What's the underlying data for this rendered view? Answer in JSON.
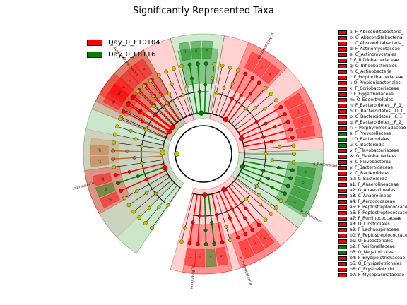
{
  "chart_data": {
    "type": "cladogram",
    "title": "Significantly Represented Taxa",
    "groups": [
      {
        "name": "Day_0_F10104",
        "color": "#ff0000"
      },
      {
        "name": "Day_0_F8116",
        "color": "#008000"
      }
    ],
    "taxa": [
      {
        "code": "a",
        "label": "a: F_Absconditabacteria_",
        "group": 0
      },
      {
        "code": "b",
        "label": "b: O_Absconditabacteria_",
        "group": 0
      },
      {
        "code": "c",
        "label": "c: C_Absconditabacteria_",
        "group": 0
      },
      {
        "code": "d",
        "label": "d: F_Actinomycetaceae",
        "group": 0
      },
      {
        "code": "e",
        "label": "e: O_Actinomycetales",
        "group": 0
      },
      {
        "code": "f",
        "label": "f: F_Bifidobacteriaceae",
        "group": 0
      },
      {
        "code": "g",
        "label": "g: O_Bifidobacteriales",
        "group": 0
      },
      {
        "code": "h",
        "label": "h: C_Actinobacteria",
        "group": 0
      },
      {
        "code": "i",
        "label": "i: F_Propionibacteriaceae",
        "group": 0
      },
      {
        "code": "j",
        "label": "j: O_Propionibacteriales",
        "group": 0
      },
      {
        "code": "k",
        "label": "k: F_Coriobacteriaceae",
        "group": 0
      },
      {
        "code": "l",
        "label": "l: F_Eggerthellaceae",
        "group": 0
      },
      {
        "code": "m",
        "label": "m: O_Eggerthellales",
        "group": 0
      },
      {
        "code": "n",
        "label": "n: F_Bacteroidetes__F_1_",
        "group": 0
      },
      {
        "code": "o",
        "label": "o: O_Bacteroidetes__O_1_",
        "group": 0
      },
      {
        "code": "p",
        "label": "p: C_Bacteroidetes__C_1_",
        "group": 0
      },
      {
        "code": "q",
        "label": "q: F_Bacteroidetes__F_2_",
        "group": 0
      },
      {
        "code": "r",
        "label": "r: F_Porphyromonadaceae",
        "group": 0
      },
      {
        "code": "s",
        "label": "s: F_Prevotellaceae",
        "group": 1
      },
      {
        "code": "t",
        "label": "t: O_Bacteroidales",
        "group": 1
      },
      {
        "code": "u",
        "label": "u: C_Bacteroidia",
        "group": 1
      },
      {
        "code": "v",
        "label": "v: F_Flavobacteriaceae",
        "group": 0
      },
      {
        "code": "w",
        "label": "w: O_Flavobacteriales",
        "group": 0
      },
      {
        "code": "x",
        "label": "x: C_Flavobacteriia",
        "group": 0
      },
      {
        "code": "y",
        "label": "y: F_Bacteroidaceae",
        "group": 0
      },
      {
        "code": "z",
        "label": "z: O_Bacteroidales",
        "group": 0
      },
      {
        "code": "a0",
        "label": "a0: C_Bacteroidia",
        "group": 0
      },
      {
        "code": "a1",
        "label": "a1: F_Anaerolineaceae",
        "group": 0
      },
      {
        "code": "a2",
        "label": "a2: O_Anaerolineales",
        "group": 0
      },
      {
        "code": "a3",
        "label": "a3: C_Anaerolineae",
        "group": 0
      },
      {
        "code": "a4",
        "label": "a4: F_Aerococcaceae",
        "group": 0
      },
      {
        "code": "a5",
        "label": "a5: F_Peptostreptococcaceae",
        "group": 0
      },
      {
        "code": "a6",
        "label": "a6: F_Peptostreptococcaceae",
        "group": 0
      },
      {
        "code": "a7",
        "label": "a7: F_Ruminococcaceae",
        "group": 0
      },
      {
        "code": "a8",
        "label": "a8: O_Clostridiales",
        "group": 0
      },
      {
        "code": "a9",
        "label": "a9: F_Lachnospiraceae",
        "group": 0
      },
      {
        "code": "b0",
        "label": "b0: F_Peptostreptococcaceae",
        "group": 0
      },
      {
        "code": "b1",
        "label": "b1: O_Eubacteriales",
        "group": 0
      },
      {
        "code": "b2",
        "label": "b2: F_Veillonellaceae",
        "group": 1
      },
      {
        "code": "b3",
        "label": "b3: O_Negativicutes",
        "group": 1
      },
      {
        "code": "b4",
        "label": "b4: F_Erysipelotrichaceae",
        "group": 0
      },
      {
        "code": "b5",
        "label": "b5: O_Erysipelotrichales",
        "group": 0
      },
      {
        "code": "b6",
        "label": "b6: C_Erysipelotrichi",
        "group": 0
      },
      {
        "code": "b7",
        "label": "b7: F_Mycoplasmataceae",
        "group": 0
      }
    ],
    "phylum_labels": [
      "p_Absconditabacteria",
      "p_Actinobacteria",
      "p_Bacteroidetes",
      "p_Chloroflexi",
      "p_Firmicutes",
      "p_Proteobacteria",
      "p_Tenericutes"
    ]
  }
}
